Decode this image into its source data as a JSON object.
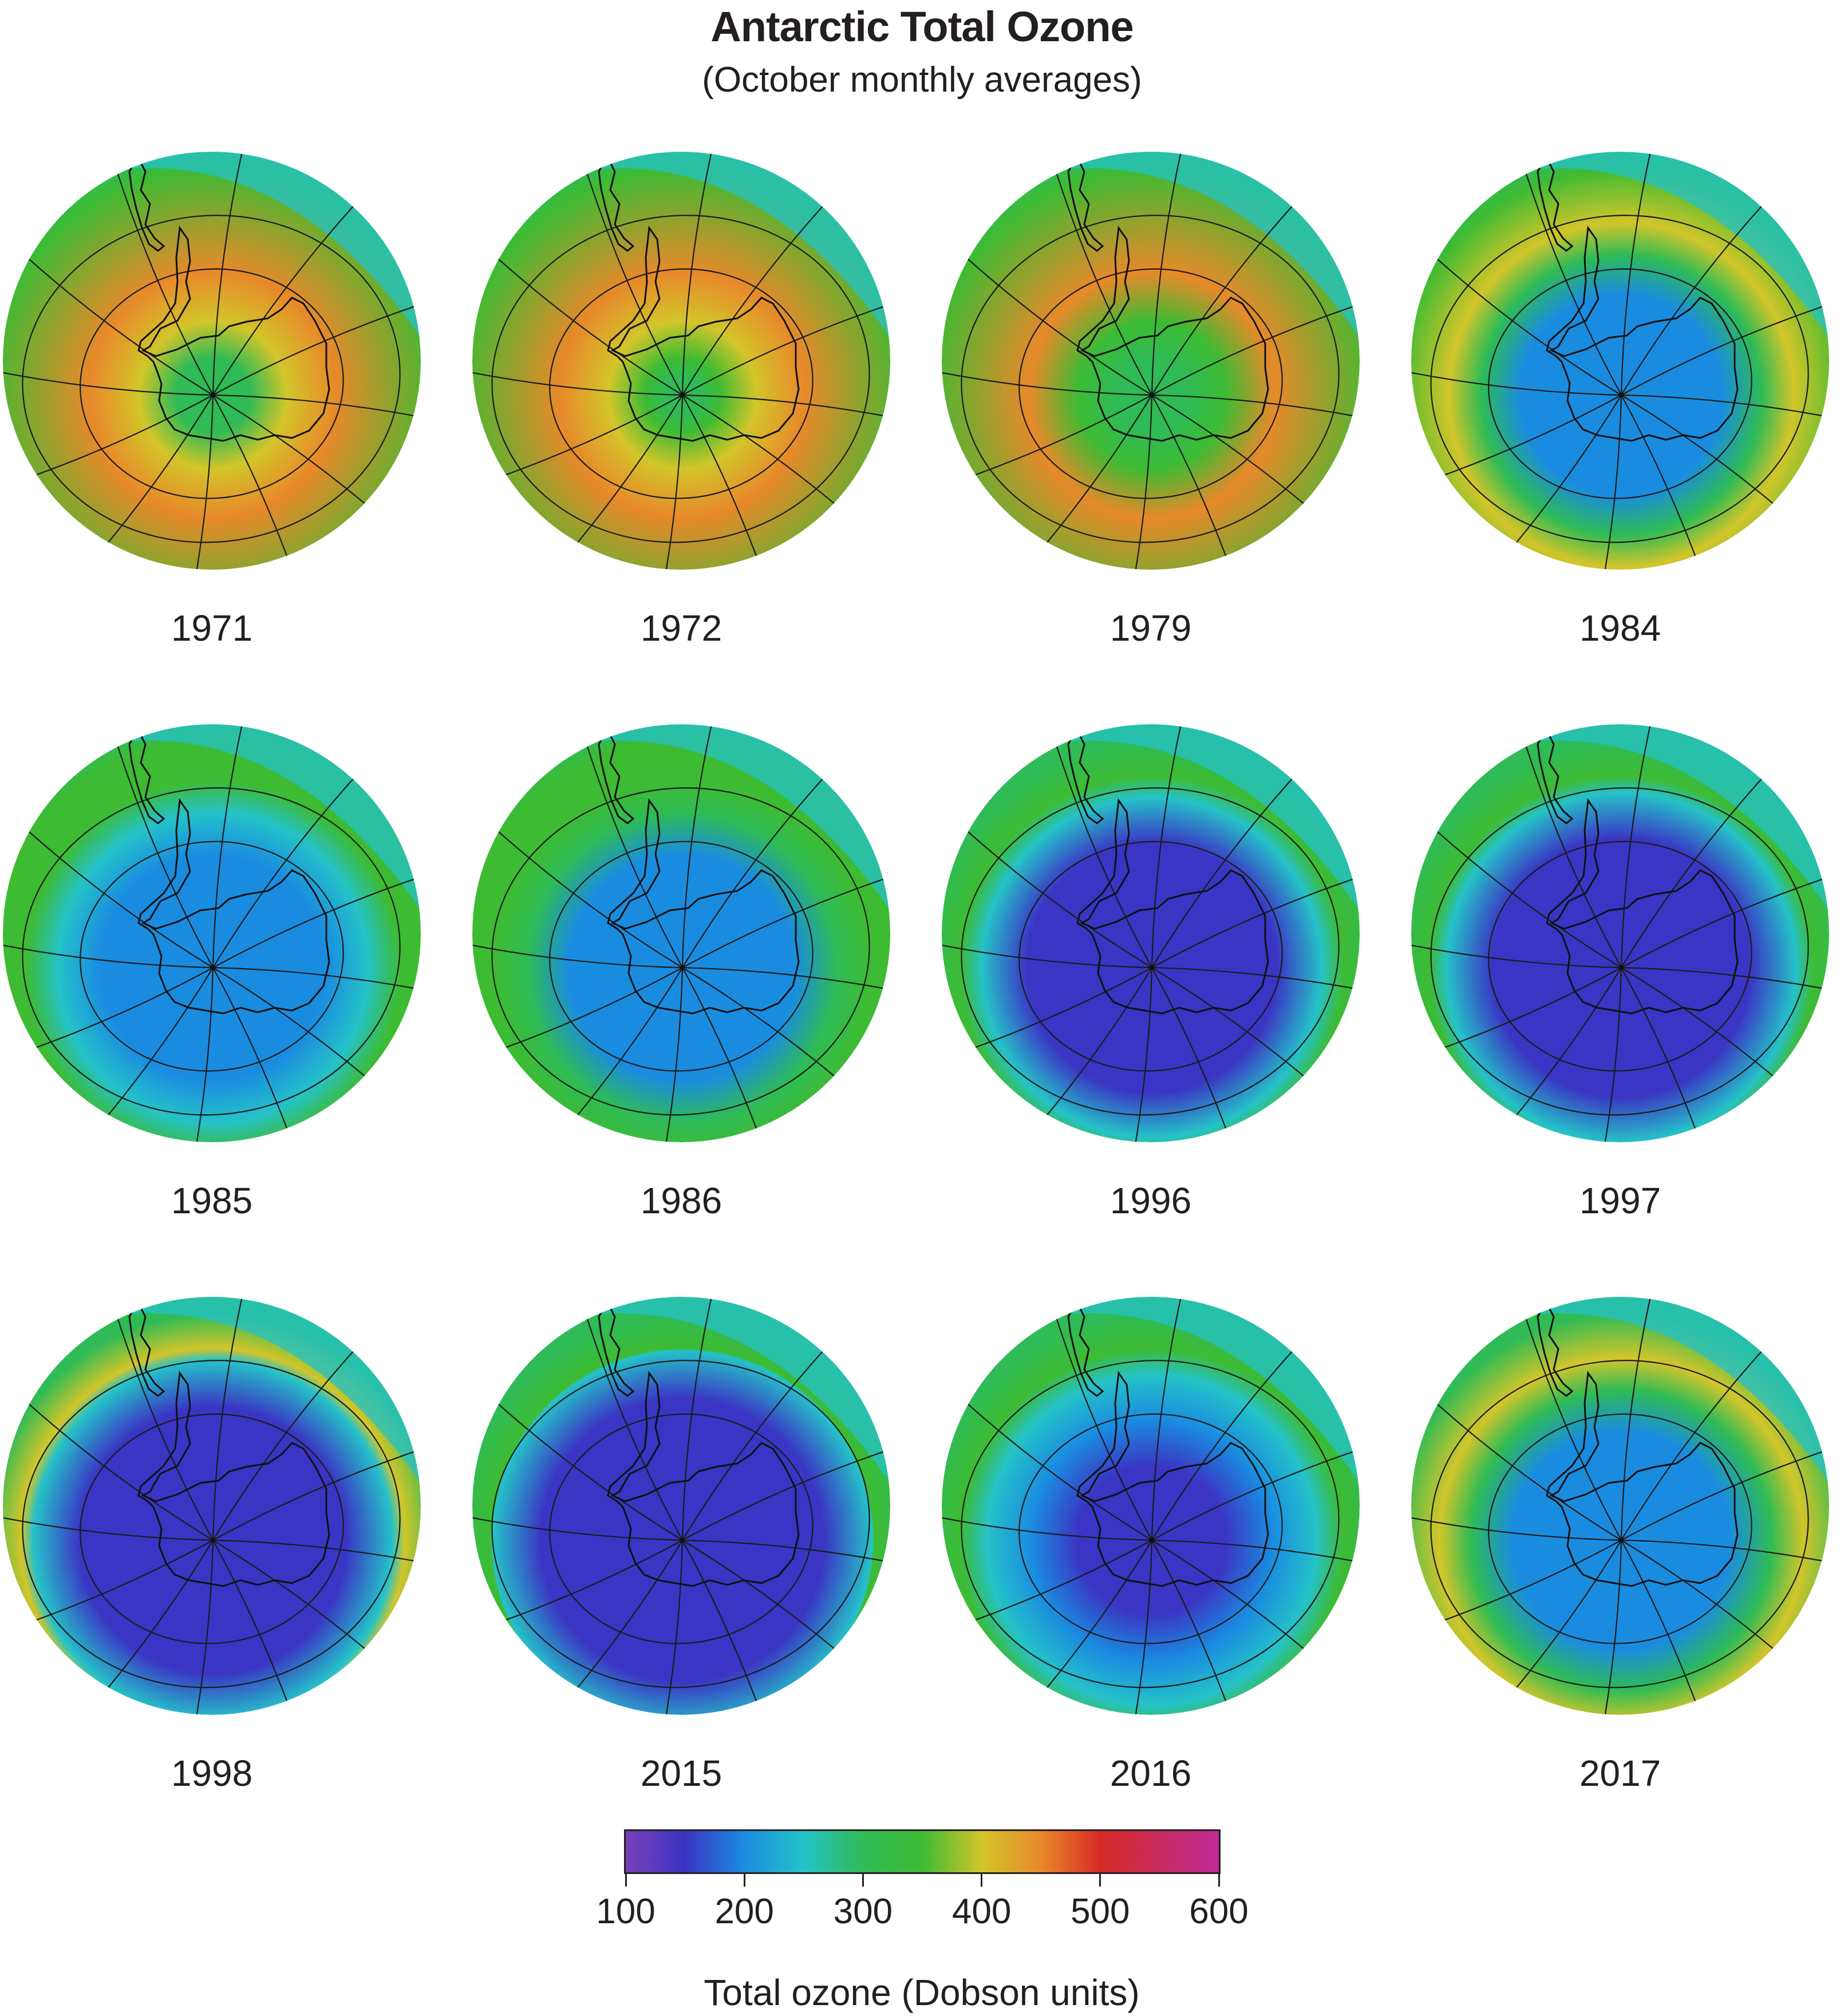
{
  "title": "Antarctic Total Ozone",
  "subtitle": "(October monthly averages)",
  "colorbar": {
    "label": "Total ozone (Dobson units)",
    "ticks": [
      "100",
      "200",
      "300",
      "400",
      "500",
      "600"
    ],
    "range": [
      100,
      600
    ],
    "colors": [
      "#7a3fb8",
      "#3a35c4",
      "#1a8ce0",
      "#25c2c8",
      "#2fbb55",
      "#3dbb33",
      "#d2c52a",
      "#e8892a",
      "#d72a26",
      "#c72c5e",
      "#c12a96"
    ]
  },
  "panels": [
    {
      "year": "1971",
      "pole": 300,
      "inner": 320,
      "ring": 440,
      "outer": 330,
      "hole": 0.0
    },
    {
      "year": "1972",
      "pole": 320,
      "inner": 335,
      "ring": 460,
      "outer": 360,
      "hole": 0.0
    },
    {
      "year": "1979",
      "pole": 275,
      "inner": 300,
      "ring": 470,
      "outer": 330,
      "hole": 0.0
    },
    {
      "year": "1984",
      "pole": 185,
      "inner": 205,
      "ring": 380,
      "outer": 340,
      "hole": 0.5
    },
    {
      "year": "1985",
      "pole": 175,
      "inner": 200,
      "ring": 345,
      "outer": 330,
      "hole": 0.56
    },
    {
      "year": "1986",
      "pole": 185,
      "inner": 210,
      "ring": 360,
      "outer": 345,
      "hole": 0.56
    },
    {
      "year": "1996",
      "pole": 135,
      "inner": 165,
      "ring": 370,
      "outer": 315,
      "hole": 0.62
    },
    {
      "year": "1997",
      "pole": 140,
      "inner": 170,
      "ring": 330,
      "outer": 305,
      "hole": 0.64
    },
    {
      "year": "1998",
      "pole": 125,
      "inner": 155,
      "ring": 380,
      "outer": 310,
      "hole": 0.66
    },
    {
      "year": "2015",
      "pole": 130,
      "inner": 155,
      "ring": 340,
      "outer": 305,
      "hole": 0.7
    },
    {
      "year": "2016",
      "pole": 165,
      "inner": 195,
      "ring": 360,
      "outer": 310,
      "hole": 0.6
    },
    {
      "year": "2017",
      "pole": 185,
      "inner": 215,
      "ring": 410,
      "outer": 320,
      "hole": 0.54
    }
  ]
}
